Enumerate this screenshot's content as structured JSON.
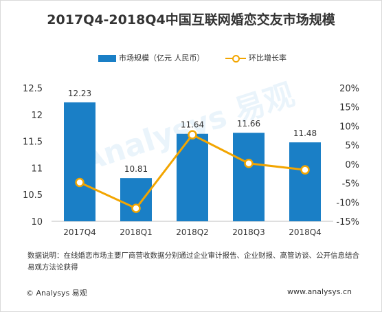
{
  "title": "2017Q4-2018Q4中国互联网婚恋交友市场规模",
  "legend": {
    "bar_label": "市场规模（亿元 人民币）",
    "line_label": "环比增长率"
  },
  "watermark": "Analysys 易观",
  "note": "数据说明：在线婚恋市场主要厂商营收数据分别通过企业审计报告、企业财报、高管访谈、公开信息结合易观方法论获得",
  "footer": {
    "copyright": "© Analysys 易观",
    "url": "www.analysys.cn"
  },
  "colors": {
    "bar": "#1a7fc6",
    "line": "#f2a500"
  },
  "chart_data": {
    "type": "bar",
    "categories": [
      "2017Q4",
      "2018Q1",
      "2018Q2",
      "2018Q3",
      "2018Q4"
    ],
    "series": [
      {
        "name": "市场规模（亿元 人民币）",
        "type": "bar",
        "axis": "left",
        "values": [
          12.23,
          10.81,
          11.64,
          11.66,
          11.48
        ],
        "labels": [
          "12.23",
          "10.81",
          "11.64",
          "11.66",
          "11.48"
        ]
      },
      {
        "name": "环比增长率",
        "type": "line",
        "axis": "right",
        "values": [
          -4.8,
          -11.6,
          7.7,
          0.2,
          -1.5
        ]
      }
    ],
    "ylim": [
      10,
      12.5
    ],
    "y_ticks": [
      "10",
      "10.5",
      "11",
      "11.5",
      "12",
      "12.5"
    ],
    "y2lim": [
      -15,
      20
    ],
    "y2_ticks": [
      "-15%",
      "-10%",
      "-5%",
      "0%",
      "5%",
      "10%",
      "15%",
      "20%"
    ],
    "legend_position": "top",
    "grid": false
  }
}
